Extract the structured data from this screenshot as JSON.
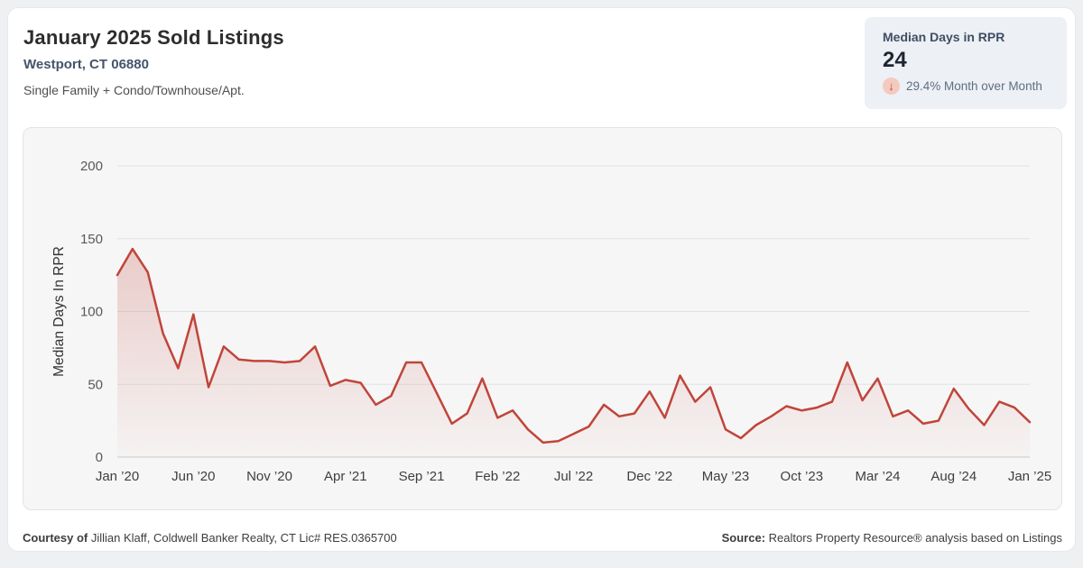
{
  "header": {
    "title": "January 2025 Sold Listings",
    "location": "Westport, CT 06880",
    "subtitle": "Single Family + Condo/Townhouse/Apt."
  },
  "stat_card": {
    "label": "Median Days in RPR",
    "value": "24",
    "change_icon": "down-arrow-icon",
    "change_arrow": "↓",
    "change_text": "29.4% Month over Month"
  },
  "footer": {
    "courtesy_label": "Courtesy of",
    "courtesy_text": " Jillian Klaff, Coldwell Banker Realty, CT Lic# RES.0365700",
    "source_label": "Source:",
    "source_text": " Realtors Property Resource® analysis based on Listings"
  },
  "colors": {
    "line": "#c0453a",
    "gridline": "#e1e2e3",
    "axis_line": "#c8c9ca",
    "y_tick_text": "#595959",
    "x_tick_text": "#3f3f3f",
    "axis_title_text": "#333333"
  },
  "chart_data": {
    "type": "area",
    "title": "January 2025 Sold Listings — Median Days in RPR",
    "ylabel": "Median Days In RPR",
    "xlabel": "",
    "ylim": [
      0,
      200
    ],
    "yticks": [
      0,
      50,
      100,
      150,
      200
    ],
    "grid": "horizontal",
    "legend": "none",
    "frequency": "monthly",
    "x_start": "Jan 2020",
    "x_end": "Jan 2025",
    "xticks": [
      {
        "index": 0,
        "label": "Jan ’20"
      },
      {
        "index": 5,
        "label": "Jun ’20"
      },
      {
        "index": 10,
        "label": "Nov ’20"
      },
      {
        "index": 15,
        "label": "Apr ’21"
      },
      {
        "index": 20,
        "label": "Sep ’21"
      },
      {
        "index": 25,
        "label": "Feb ’22"
      },
      {
        "index": 30,
        "label": "Jul ’22"
      },
      {
        "index": 35,
        "label": "Dec ’22"
      },
      {
        "index": 40,
        "label": "May ’23"
      },
      {
        "index": 45,
        "label": "Oct ’23"
      },
      {
        "index": 50,
        "label": "Mar ’24"
      },
      {
        "index": 55,
        "label": "Aug ’24"
      },
      {
        "index": 60,
        "label": "Jan ’25"
      }
    ],
    "series": [
      {
        "name": "Median Days In RPR",
        "values": [
          125,
          143,
          127,
          85,
          61,
          98,
          48,
          76,
          67,
          66,
          66,
          65,
          66,
          76,
          49,
          53,
          51,
          36,
          42,
          65,
          65,
          44,
          23,
          30,
          54,
          27,
          32,
          19,
          10,
          11,
          16,
          21,
          36,
          28,
          30,
          45,
          27,
          56,
          38,
          48,
          19,
          13,
          22,
          28,
          35,
          32,
          34,
          38,
          65,
          39,
          54,
          28,
          32,
          23,
          25,
          47,
          33,
          22,
          38,
          34,
          24
        ]
      }
    ]
  }
}
